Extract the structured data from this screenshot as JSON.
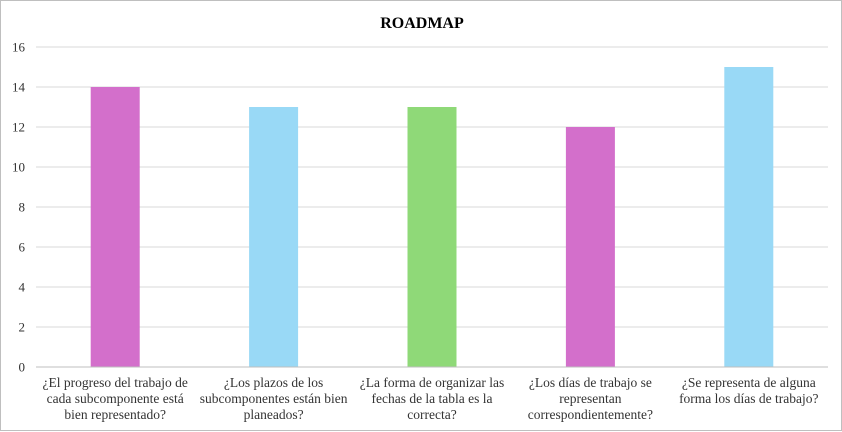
{
  "chart_data": {
    "type": "bar",
    "title": "ROADMAP",
    "xlabel": "",
    "ylabel": "",
    "ylim": [
      0,
      16
    ],
    "yticks": [
      0,
      2,
      4,
      6,
      8,
      10,
      12,
      14,
      16
    ],
    "grid": true,
    "legend": "none",
    "categories": [
      [
        "¿El progreso del trabajo de",
        "cada subcomponente está",
        "bien representado?"
      ],
      [
        "¿Los plazos de los",
        "subcomponentes están bien",
        "planeados?"
      ],
      [
        "¿La forma de organizar las",
        "fechas de la tabla es la",
        "correcta?"
      ],
      [
        "¿Los días de trabajo se",
        "representan",
        "correspondientemente?"
      ],
      [
        "¿Se representa de alguna",
        "forma los días de trabajo?"
      ]
    ],
    "values": [
      14,
      13,
      13,
      12,
      15
    ],
    "colors": [
      "#d36fcb",
      "#99d9f6",
      "#8fd978",
      "#d36fcb",
      "#99d9f6"
    ]
  }
}
